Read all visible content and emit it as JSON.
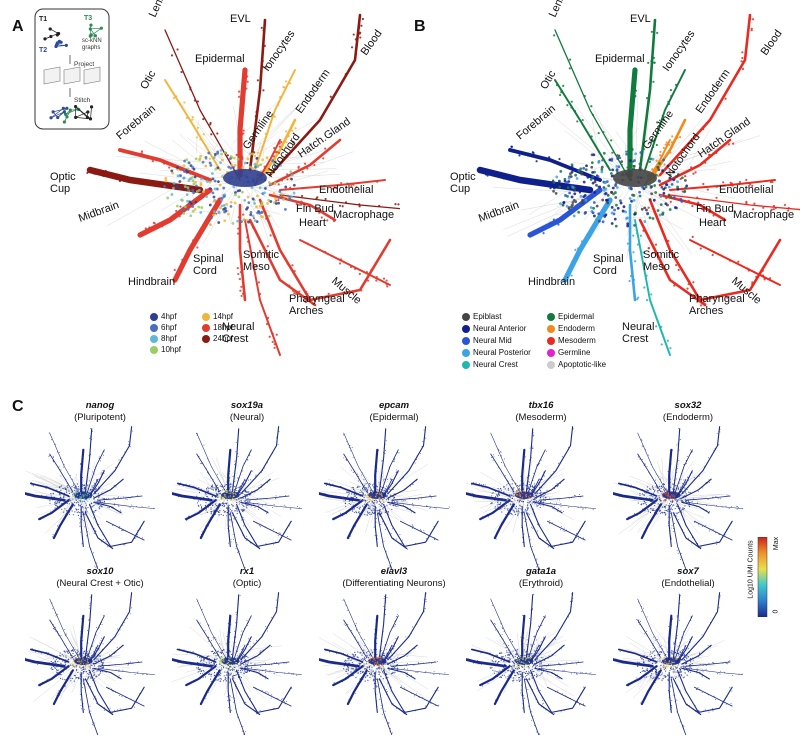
{
  "panels": {
    "a_letter": "A",
    "b_letter": "B",
    "c_letter": "C"
  },
  "inset": {
    "t1": "T1",
    "t2": "T2",
    "t3": "T3",
    "caption_line1": "sc-kNN",
    "caption_line2": "graphs",
    "step_project": "Project",
    "step_stitch": "Stitch",
    "colors": {
      "t1": "#222222",
      "t2": "#2c4aa0",
      "t3": "#2e8b57"
    }
  },
  "tissue_labels": {
    "lens": "Lens",
    "evl": "EVL",
    "epidermal": "Epidermal",
    "ionocytes": "Ionocytes",
    "blood": "Blood",
    "otic": "Otic",
    "endoderm": "Endoderm",
    "germline": "Germline",
    "hatch_gland": "Hatch.Gland",
    "forebrain": "Forebrain",
    "notochord": "Notochord",
    "optic_cup": "Optic\nCup",
    "endothelial": "Endothelial",
    "fin_bud": "Fin Bud",
    "heart": "Heart",
    "macrophage": "Macrophage",
    "midbrain": "Midbrain",
    "somitic_meso": "Somitic\nMeso",
    "spinal_cord": "Spinal\nCord",
    "hindbrain": "Hindbrain",
    "muscle": "Muscle",
    "pharyngeal_arches": "Pharyngeal\nArches",
    "neural_crest": "Neural\nCrest"
  },
  "legend_a": {
    "items": [
      {
        "label": "4hpf",
        "color": "#2f3f8f"
      },
      {
        "label": "6hpf",
        "color": "#4a6fc0"
      },
      {
        "label": "8hpf",
        "color": "#5fb8d8"
      },
      {
        "label": "10hpf",
        "color": "#9acd62"
      },
      {
        "label": "14hpf",
        "color": "#f2b53a"
      },
      {
        "label": "18hpf",
        "color": "#e23b2f"
      },
      {
        "label": "24hpf",
        "color": "#8b1a12"
      }
    ]
  },
  "legend_b": {
    "items": [
      {
        "label": "Epiblast",
        "color": "#444444"
      },
      {
        "label": "Neural Anterior",
        "color": "#0f1f8c"
      },
      {
        "label": "Neural Mid",
        "color": "#2a55d6"
      },
      {
        "label": "Neural Posterior",
        "color": "#3ba3e6"
      },
      {
        "label": "Neural Crest",
        "color": "#22b6b0"
      },
      {
        "label": "Epidermal",
        "color": "#117a3e"
      },
      {
        "label": "Endoderm",
        "color": "#f08a1c"
      },
      {
        "label": "Mesoderm",
        "color": "#e82a20"
      },
      {
        "label": "Germline",
        "color": "#e021d6"
      },
      {
        "label": "Apoptotic-like",
        "color": "#cccccc"
      }
    ]
  },
  "genes": [
    {
      "name": "nanog",
      "desc": "(Pluripotent)",
      "hot": "#6fd6a0"
    },
    {
      "name": "sox19a",
      "desc": "(Neural)",
      "hot": "#d8d83a"
    },
    {
      "name": "epcam",
      "desc": "(Epidermal)",
      "hot": "#f0b23a"
    },
    {
      "name": "tbx16",
      "desc": "(Mesoderm)",
      "hot": "#f08a3a"
    },
    {
      "name": "sox32",
      "desc": "(Endoderm)",
      "hot": "#e85a2a"
    },
    {
      "name": "sox10",
      "desc": "(Neural Crest + Otic)",
      "hot": "#e8b23a"
    },
    {
      "name": "rx1",
      "desc": "(Optic)",
      "hot": "#c8e05a"
    },
    {
      "name": "elavl3",
      "desc": "(Differentiating Neurons)",
      "hot": "#f07a2a"
    },
    {
      "name": "gata1a",
      "desc": "(Erythroid)",
      "hot": "#d0e06a"
    },
    {
      "name": "sox7",
      "desc": "(Endothelial)",
      "hot": "#e8c05a"
    }
  ],
  "colorbar": {
    "title": "Log10 UMI Counts",
    "max": "Max",
    "min": "0",
    "stops": [
      "#1a2a8a",
      "#2f7fd0",
      "#3fc8d0",
      "#e8e04a",
      "#f0902a",
      "#c8241a"
    ]
  }
}
